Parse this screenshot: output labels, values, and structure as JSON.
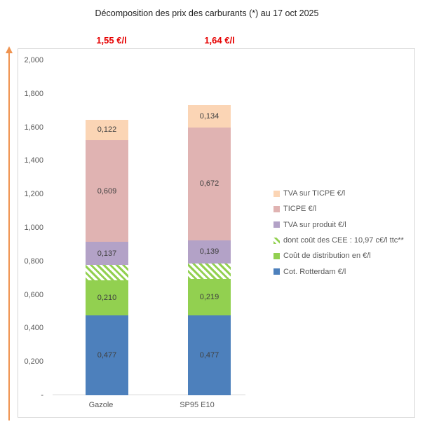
{
  "title": "Décomposition des prix des carburants (*) au 17 oct 2025",
  "totals": [
    {
      "label": "1,55 €/l"
    },
    {
      "label": "1,64 €/l"
    }
  ],
  "colors": {
    "blue": "#4d80bc",
    "green": "#92d050",
    "purple": "#b3a2c7",
    "pink": "#e0b3b2",
    "peach": "#fbd5b5",
    "hatch_stripe": "#92d050",
    "total_red": "#e60000",
    "axis_gray": "#d6d6d6",
    "arrow_orange": "#ef9350",
    "tick_text": "#595959",
    "label_text": "#404040"
  },
  "chart_data": {
    "type": "bar",
    "stacked": true,
    "title": "Décomposition des prix des carburants (*) au 17 oct 2025",
    "categories": [
      "Gazole",
      "SP95 E10"
    ],
    "series": [
      {
        "key": "rotterdam",
        "name": "Cot. Rotterdam €/l",
        "color_key": "blue",
        "pattern": "solid",
        "values": [
          0.477,
          0.477
        ],
        "labels": [
          "0,477",
          "0,477"
        ]
      },
      {
        "key": "distribution",
        "name": "Coût de distribution en €/l",
        "color_key": "green",
        "pattern": "solid",
        "values": [
          0.21,
          0.219
        ],
        "labels": [
          "0,210",
          "0,219"
        ]
      },
      {
        "key": "cee",
        "name": "dont coût des CEE : 10,97 c€/l ttc**",
        "color_key": "green",
        "pattern": "hatch",
        "values": [
          0.091,
          0.091
        ],
        "labels": [
          "",
          ""
        ]
      },
      {
        "key": "tva-produit",
        "name": "TVA sur produit €/l",
        "color_key": "purple",
        "pattern": "solid",
        "values": [
          0.137,
          0.139
        ],
        "labels": [
          "0,137",
          "0,139"
        ]
      },
      {
        "key": "ticpe",
        "name": "TICPE €/l",
        "color_key": "pink",
        "pattern": "solid",
        "values": [
          0.609,
          0.672
        ],
        "labels": [
          "0,609",
          "0,672"
        ]
      },
      {
        "key": "tva-ticpe",
        "name": "TVA sur TICPE €/l",
        "color_key": "peach",
        "pattern": "solid",
        "values": [
          0.122,
          0.134
        ],
        "labels": [
          "0,122",
          "0,134"
        ]
      }
    ],
    "totals_per_category": [
      "1,55 €/l",
      "1,64 €/l"
    ],
    "y_axis": {
      "ticks": [
        {
          "v": 2.0,
          "label": "2,000"
        },
        {
          "v": 1.8,
          "label": "1,800"
        },
        {
          "v": 1.6,
          "label": "1,600"
        },
        {
          "v": 1.4,
          "label": "1,400"
        },
        {
          "v": 1.2,
          "label": "1,200"
        },
        {
          "v": 1.0,
          "label": "1,000"
        },
        {
          "v": 0.8,
          "label": "0,800"
        },
        {
          "v": 0.6,
          "label": "0,600"
        },
        {
          "v": 0.4,
          "label": "0,400"
        },
        {
          "v": 0.2,
          "label": "0,200"
        },
        {
          "v": 0.0,
          "label": "-"
        }
      ],
      "ylim": [
        0,
        2.0
      ]
    },
    "grid": false,
    "legend_position": "right",
    "legend_order_note": "legend lists series top-of-stack first"
  }
}
